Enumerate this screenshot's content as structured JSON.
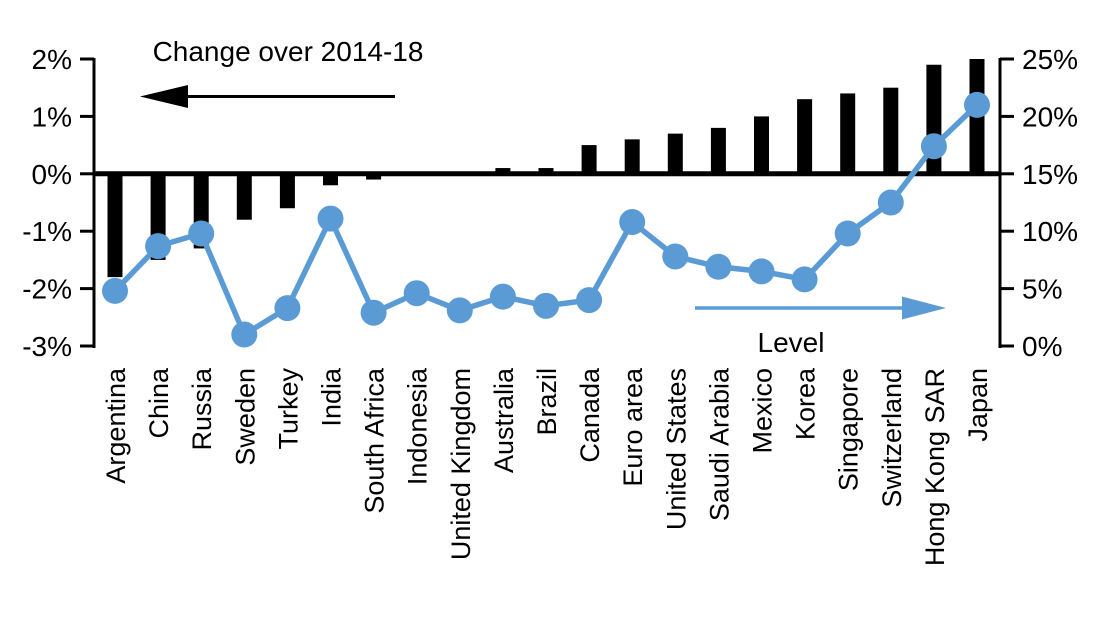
{
  "chart_data": {
    "type": "combo-bar-line",
    "title_left": "Change over 2014-18",
    "title_right": "Level",
    "categories": [
      "Argentina",
      "China",
      "Russia",
      "Sweden",
      "Turkey",
      "India",
      "South Africa",
      "Indonesia",
      "United Kingdom",
      "Australia",
      "Brazil",
      "Canada",
      "Euro area",
      "United States",
      "Saudi Arabia",
      "Mexico",
      "Korea",
      "Singapore",
      "Switzerland",
      "Hong Kong SAR",
      "Japan"
    ],
    "series": [
      {
        "name": "Change over 2014-18",
        "type": "bar",
        "axis": "left",
        "color": "#000000",
        "values": [
          -1.8,
          -1.5,
          -1.3,
          -0.8,
          -0.6,
          -0.2,
          -0.1,
          0,
          0,
          0.1,
          0.1,
          0.5,
          0.6,
          0.7,
          0.8,
          1.0,
          1.3,
          1.4,
          1.5,
          1.9,
          2.0
        ]
      },
      {
        "name": "Level",
        "type": "line",
        "axis": "right",
        "color": "#5B9BD5",
        "values": [
          4.8,
          8.7,
          9.8,
          1.0,
          3.3,
          11.1,
          2.9,
          4.6,
          3.1,
          4.3,
          3.5,
          4.0,
          10.8,
          7.8,
          6.9,
          6.5,
          5.8,
          9.8,
          12.5,
          17.4,
          21.0
        ]
      }
    ],
    "left_axis": {
      "ticks": [
        "2%",
        "1%",
        "0%",
        "-1%",
        "-2%",
        "-3%"
      ],
      "values": [
        2,
        1,
        0,
        -1,
        -2,
        -3
      ],
      "min": -3,
      "max": 2
    },
    "right_axis": {
      "ticks": [
        "25%",
        "20%",
        "15%",
        "10%",
        "5%",
        "0%"
      ],
      "values": [
        25,
        20,
        15,
        10,
        5,
        0
      ],
      "min": 0,
      "max": 25
    },
    "grid": "off",
    "legend_position": "arrows-inside-plot"
  },
  "colors": {
    "background": "#FFFFFF",
    "bar": "#000000",
    "line": "#5B9BD5",
    "axis": "#000000",
    "text": "#000000"
  }
}
